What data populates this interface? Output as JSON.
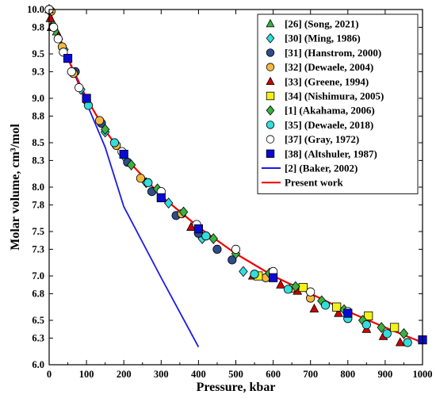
{
  "chart_data": {
    "type": "scatter",
    "title": "",
    "xlabel": "Pressure, kbar",
    "ylabel": "Molar volume, cm³/mol",
    "xlim": [
      0,
      1000
    ],
    "ylim": [
      6.0,
      10.0
    ],
    "x_ticks": [
      "0",
      "100",
      "200",
      "300",
      "400",
      "500",
      "600",
      "700",
      "800",
      "900",
      "1000"
    ],
    "y_ticks": [
      "6.0",
      "6.3",
      "6.5",
      "6.8",
      "7.0",
      "7.3",
      "7.5",
      "7.8",
      "8.0",
      "8.3",
      "8.5",
      "8.8",
      "9.0",
      "9.3",
      "9.5",
      "9.8",
      "10.0"
    ],
    "grid": false,
    "legend_position": "top-right",
    "series": [
      {
        "name": "[26] (Song, 2021)",
        "marker": "triangle",
        "color": "#3cb043",
        "points": [
          [
            0,
            10.0
          ],
          [
            10,
            9.85
          ],
          [
            20,
            9.75
          ]
        ]
      },
      {
        "name": "[30] (Ming, 1986)",
        "marker": "diamond",
        "color": "#33dddd",
        "points": [
          [
            0,
            10.0
          ],
          [
            40,
            9.55
          ],
          [
            85,
            9.1
          ],
          [
            150,
            8.62
          ],
          [
            200,
            8.35
          ],
          [
            260,
            8.05
          ],
          [
            320,
            7.82
          ],
          [
            410,
            7.42
          ],
          [
            520,
            7.05
          ]
        ]
      },
      {
        "name": "[31] (Hanstrom, 2000)",
        "marker": "circle",
        "color": "#2e4d8c",
        "points": [
          [
            0,
            10.0
          ],
          [
            70,
            9.3
          ],
          [
            140,
            8.72
          ],
          [
            210,
            8.28
          ],
          [
            275,
            7.95
          ],
          [
            340,
            7.68
          ],
          [
            400,
            7.48
          ],
          [
            450,
            7.3
          ],
          [
            490,
            7.18
          ]
        ]
      },
      {
        "name": "[32] (Dewaele, 2004)",
        "marker": "circle",
        "color": "#f5b942",
        "points": [
          [
            5,
            9.98
          ],
          [
            35,
            9.58
          ],
          [
            65,
            9.28
          ],
          [
            100,
            8.98
          ],
          [
            135,
            8.75
          ],
          [
            180,
            8.47
          ],
          [
            245,
            8.1
          ],
          [
            355,
            7.7
          ],
          [
            420,
            7.45
          ],
          [
            580,
            6.98
          ],
          [
            650,
            6.86
          ],
          [
            700,
            6.75
          ]
        ]
      },
      {
        "name": "[33] (Greene, 1994)",
        "marker": "triangle",
        "color": "#cc0000",
        "points": [
          [
            0,
            10.0
          ],
          [
            3,
            9.9
          ],
          [
            6,
            9.8
          ],
          [
            25,
            9.7
          ],
          [
            380,
            7.55
          ],
          [
            545,
            7.0
          ],
          [
            620,
            6.9
          ],
          [
            665,
            6.83
          ],
          [
            710,
            6.63
          ],
          [
            775,
            6.58
          ],
          [
            850,
            6.4
          ],
          [
            895,
            6.32
          ],
          [
            940,
            6.25
          ]
        ]
      },
      {
        "name": "[34] (Nishimura, 2005)",
        "marker": "square",
        "color": "#f2f21a",
        "points": [
          [
            560,
            7.0
          ],
          [
            680,
            6.87
          ],
          [
            770,
            6.65
          ],
          [
            855,
            6.55
          ],
          [
            925,
            6.42
          ]
        ]
      },
      {
        "name": "[1] (Akahama, 2006)",
        "marker": "diamond",
        "color": "#3cb043",
        "points": [
          [
            150,
            8.65
          ],
          [
            220,
            8.25
          ],
          [
            290,
            7.98
          ],
          [
            360,
            7.72
          ],
          [
            440,
            7.42
          ],
          [
            500,
            7.25
          ],
          [
            590,
            7.03
          ],
          [
            660,
            6.88
          ],
          [
            730,
            6.72
          ],
          [
            790,
            6.62
          ],
          [
            840,
            6.5
          ],
          [
            890,
            6.42
          ],
          [
            950,
            6.35
          ]
        ]
      },
      {
        "name": "[35] (Dewaele, 2018)",
        "marker": "circle",
        "color": "#33dddd",
        "points": [
          [
            105,
            8.92
          ],
          [
            175,
            8.5
          ],
          [
            265,
            8.05
          ],
          [
            420,
            7.45
          ],
          [
            550,
            7.02
          ],
          [
            640,
            6.85
          ],
          [
            740,
            6.67
          ],
          [
            800,
            6.52
          ],
          [
            850,
            6.45
          ],
          [
            905,
            6.35
          ],
          [
            960,
            6.25
          ]
        ]
      },
      {
        "name": "[37] (Gray, 1972)",
        "marker": "circle",
        "color": "#ffffff",
        "points": [
          [
            0,
            10.0
          ],
          [
            12,
            9.8
          ],
          [
            24,
            9.67
          ],
          [
            38,
            9.52
          ],
          [
            60,
            9.3
          ],
          [
            80,
            9.12
          ],
          [
            195,
            8.4
          ],
          [
            300,
            7.95
          ],
          [
            395,
            7.58
          ],
          [
            500,
            7.3
          ],
          [
            600,
            7.05
          ],
          [
            700,
            6.82
          ],
          [
            800,
            6.6
          ]
        ]
      },
      {
        "name": "[38] (Altshuler, 1987)",
        "marker": "square",
        "color": "#0a0ad6",
        "points": [
          [
            50,
            9.45
          ],
          [
            100,
            9.0
          ],
          [
            200,
            8.37
          ],
          [
            300,
            7.88
          ],
          [
            400,
            7.53
          ],
          [
            600,
            6.98
          ],
          [
            800,
            6.58
          ],
          [
            1000,
            6.28
          ]
        ]
      }
    ],
    "lines": [
      {
        "name": "[2] (Baker, 2002)",
        "color": "#1a1ae6",
        "points": [
          [
            0,
            10.0
          ],
          [
            50,
            9.45
          ],
          [
            100,
            8.95
          ],
          [
            150,
            8.45
          ],
          [
            200,
            7.78
          ],
          [
            300,
            6.98
          ],
          [
            400,
            6.2
          ]
        ]
      },
      {
        "name": "Present work",
        "color": "#ee0000",
        "points": [
          [
            0,
            10.0
          ],
          [
            25,
            9.7
          ],
          [
            50,
            9.45
          ],
          [
            100,
            9.0
          ],
          [
            150,
            8.64
          ],
          [
            200,
            8.35
          ],
          [
            300,
            7.9
          ],
          [
            400,
            7.55
          ],
          [
            500,
            7.25
          ],
          [
            600,
            7.0
          ],
          [
            700,
            6.8
          ],
          [
            800,
            6.6
          ],
          [
            900,
            6.42
          ],
          [
            1000,
            6.25
          ]
        ]
      }
    ]
  }
}
